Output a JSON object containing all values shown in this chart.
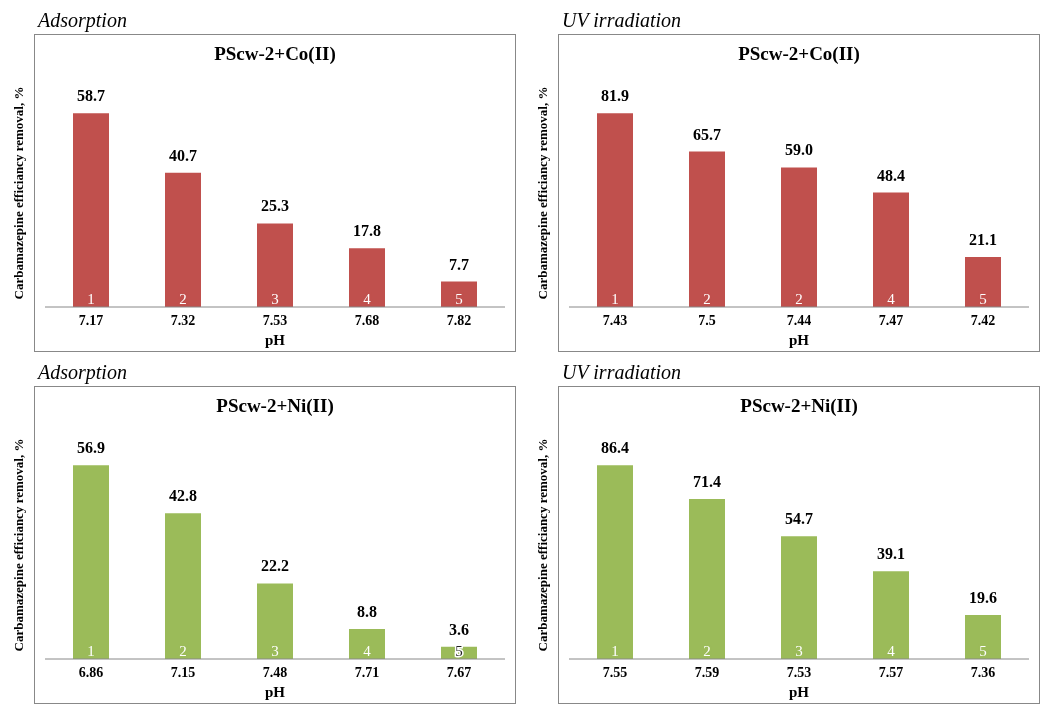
{
  "chart_data": [
    {
      "type": "bar",
      "title": "Adsorption",
      "subtitle": "PScw-2+Co(II)",
      "xlabel": "pH",
      "ylabel": "Carbamazepine efficiancy removal, %",
      "categories": [
        "7.17",
        "7.32",
        "7.53",
        "7.68",
        "7.82"
      ],
      "values": [
        58.7,
        40.7,
        25.3,
        17.8,
        7.7
      ],
      "value_labels": [
        "58.7",
        "40.7",
        "25.3",
        "17.8",
        "7.7"
      ],
      "color": "#c0504d",
      "annotations": [
        "1",
        "2",
        "3",
        "4",
        "5"
      ]
    },
    {
      "type": "bar",
      "title": "UV irradiation",
      "subtitle": "PScw-2+Co(II)",
      "xlabel": "pH",
      "ylabel": "Carbamazepine efficiancy removal, %",
      "categories": [
        "7.43",
        "7.5",
        "7.44",
        "7.47",
        "7.42"
      ],
      "values": [
        81.9,
        65.7,
        59.0,
        48.4,
        21.1
      ],
      "value_labels": [
        "81.9",
        "65.7",
        "59.0",
        "48.4",
        "21.1"
      ],
      "color": "#c0504d",
      "annotations": [
        "1",
        "2",
        "2",
        "4",
        "5"
      ]
    },
    {
      "type": "bar",
      "title": "Adsorption",
      "subtitle": "PScw-2+Ni(II)",
      "xlabel": "pH",
      "ylabel": "Carbamazepine efficiancy removal, %",
      "categories": [
        "6.86",
        "7.15",
        "7.48",
        "7.71",
        "7.67"
      ],
      "values": [
        56.9,
        42.8,
        22.2,
        8.8,
        3.6
      ],
      "value_labels": [
        "56.9",
        "42.8",
        "22.2",
        "8.8",
        "3.6"
      ],
      "color": "#9bbb59",
      "annotations": [
        "1",
        "2",
        "3",
        "4",
        "5"
      ]
    },
    {
      "type": "bar",
      "title": "UV irradiation",
      "subtitle": "PScw-2+Ni(II)",
      "xlabel": "pH",
      "ylabel": "Carbamazepine efficiancy removal, %",
      "categories": [
        "7.55",
        "7.59",
        "7.53",
        "7.57",
        "7.36"
      ],
      "values": [
        86.4,
        71.4,
        54.7,
        39.1,
        19.6
      ],
      "value_labels": [
        "86.4",
        "71.4",
        "54.7",
        "39.1",
        "19.6"
      ],
      "color": "#9bbb59",
      "annotations": [
        "1",
        "2",
        "3",
        "4",
        "5"
      ]
    }
  ]
}
